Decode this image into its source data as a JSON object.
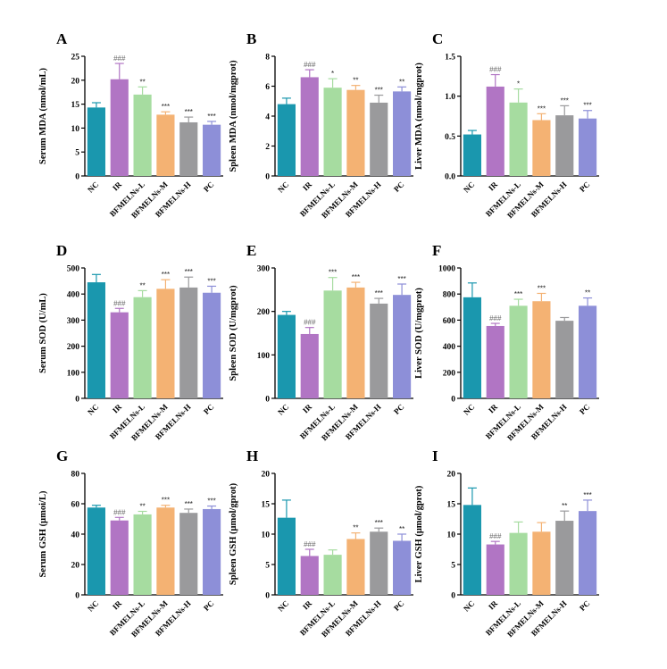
{
  "colors": [
    "#1a97ae",
    "#b175c4",
    "#a6dca0",
    "#f4b273",
    "#9a9a9c",
    "#8d8fd8"
  ],
  "chart_data": [
    {
      "type": "bar",
      "letter": "A",
      "ylabel": "Serum MDA (nmol/mL)",
      "ylim": [
        0,
        25
      ],
      "yticks": [
        0,
        5,
        10,
        15,
        20,
        25
      ],
      "categories": [
        "NC",
        "IR",
        "BFMELNs-L",
        "BFMELNs-M",
        "BFMELNs-H",
        "PC"
      ],
      "values": [
        14.3,
        20.2,
        17.0,
        12.8,
        11.2,
        10.7
      ],
      "errors": [
        1.0,
        3.3,
        1.6,
        0.6,
        1.1,
        0.7
      ],
      "sig": [
        "",
        "###",
        "**",
        "***",
        "***",
        "***"
      ]
    },
    {
      "type": "bar",
      "letter": "B",
      "ylabel": "Spleen MDA (nmol/mgprot)",
      "ylim": [
        0,
        8
      ],
      "yticks": [
        0,
        2,
        4,
        6,
        8
      ],
      "categories": [
        "NC",
        "IR",
        "BFMELNs-L",
        "BFMELNs-M",
        "BFMELNs-H",
        "PC"
      ],
      "values": [
        4.8,
        6.6,
        5.9,
        5.75,
        4.9,
        5.65
      ],
      "errors": [
        0.4,
        0.5,
        0.6,
        0.3,
        0.5,
        0.3
      ],
      "sig": [
        "",
        "###",
        "*",
        "**",
        "***",
        "**"
      ]
    },
    {
      "type": "bar",
      "letter": "C",
      "ylabel": "Liver  MDA (nmol/mgprot)",
      "ylim": [
        0,
        1.5
      ],
      "yticks": [
        0.0,
        0.5,
        1.0,
        1.5
      ],
      "categories": [
        "NC",
        "IR",
        "BFMELNs-L",
        "BFMELNs-M",
        "BFMELNs-H",
        "PC"
      ],
      "values": [
        0.52,
        1.12,
        0.92,
        0.7,
        0.76,
        0.72
      ],
      "errors": [
        0.05,
        0.15,
        0.17,
        0.08,
        0.12,
        0.1
      ],
      "sig": [
        "",
        "###",
        "*",
        "***",
        "***",
        "***"
      ]
    },
    {
      "type": "bar",
      "letter": "D",
      "ylabel": "Serum SOD (U/mL)",
      "ylim": [
        0,
        500
      ],
      "yticks": [
        0,
        100,
        200,
        300,
        400,
        500
      ],
      "categories": [
        "NC",
        "IR",
        "BFMELNs-L",
        "BFMELNs-M",
        "BFMELNs-H",
        "PC"
      ],
      "values": [
        445,
        330,
        388,
        420,
        425,
        405
      ],
      "errors": [
        30,
        15,
        25,
        35,
        40,
        25
      ],
      "sig": [
        "",
        "###",
        "**",
        "***",
        "***",
        "***"
      ]
    },
    {
      "type": "bar",
      "letter": "E",
      "ylabel": "Spleen SOD (U/mgprot)",
      "ylim": [
        0,
        300
      ],
      "yticks": [
        0,
        100,
        200,
        300
      ],
      "categories": [
        "NC",
        "IR",
        "BFMELNs-L",
        "BFMELNs-M",
        "BFMELNs-H",
        "PC"
      ],
      "values": [
        192,
        148,
        248,
        255,
        218,
        238
      ],
      "errors": [
        8,
        15,
        30,
        12,
        12,
        25
      ],
      "sig": [
        "",
        "###",
        "***",
        "***",
        "***",
        "***"
      ]
    },
    {
      "type": "bar",
      "letter": "F",
      "ylabel": "Liver  SOD (U/mgprot)",
      "ylim": [
        0,
        1000
      ],
      "yticks": [
        0,
        200,
        400,
        600,
        800,
        1000
      ],
      "categories": [
        "NC",
        "IR",
        "BFMELNs-L",
        "BFMELNs-M",
        "BFMELNs-H",
        "PC"
      ],
      "values": [
        775,
        555,
        710,
        745,
        595,
        710
      ],
      "errors": [
        110,
        20,
        50,
        60,
        25,
        60
      ],
      "sig": [
        "",
        "###",
        "***",
        "***",
        "",
        "**"
      ]
    },
    {
      "type": "bar",
      "letter": "G",
      "ylabel": "Serum GSH  (μmoi/L)",
      "ylim": [
        0,
        80
      ],
      "yticks": [
        0,
        20,
        40,
        60,
        80
      ],
      "categories": [
        "NC",
        "IR",
        "BFMELNs-L",
        "BFMELNs-M",
        "BFMELNs-H",
        "PC"
      ],
      "values": [
        57.5,
        49,
        53,
        57.5,
        54,
        56.5
      ],
      "errors": [
        1.5,
        2,
        2,
        1.5,
        2.5,
        2
      ],
      "sig": [
        "",
        "###",
        "**",
        "***",
        "***",
        "***"
      ]
    },
    {
      "type": "bar",
      "letter": "H",
      "ylabel": "Spleen GSH  (μmol/gprot)",
      "ylim": [
        0,
        20
      ],
      "yticks": [
        0,
        5,
        10,
        15,
        20
      ],
      "categories": [
        "NC",
        "IR",
        "BFMELNs-L",
        "BFMELNs-M",
        "BFMELNs-H",
        "PC"
      ],
      "values": [
        12.7,
        6.4,
        6.6,
        9.2,
        10.4,
        8.9
      ],
      "errors": [
        2.9,
        1.1,
        0.8,
        1.0,
        0.6,
        1.1
      ],
      "sig": [
        "",
        "###",
        "",
        "**",
        "***",
        "**"
      ]
    },
    {
      "type": "bar",
      "letter": "I",
      "ylabel": "Liver GSH (μmol/gprot)",
      "ylim": [
        0,
        20
      ],
      "yticks": [
        0,
        5,
        10,
        15,
        20
      ],
      "categories": [
        "NC",
        "IR",
        "BFMELNs-L",
        "BFMELNs-M",
        "BFMELNs-H",
        "PC"
      ],
      "values": [
        14.8,
        8.3,
        10.2,
        10.4,
        12.2,
        13.8
      ],
      "errors": [
        2.8,
        0.5,
        1.8,
        1.5,
        1.6,
        1.8
      ],
      "sig": [
        "",
        "###",
        "",
        "",
        "**",
        "***"
      ]
    }
  ]
}
